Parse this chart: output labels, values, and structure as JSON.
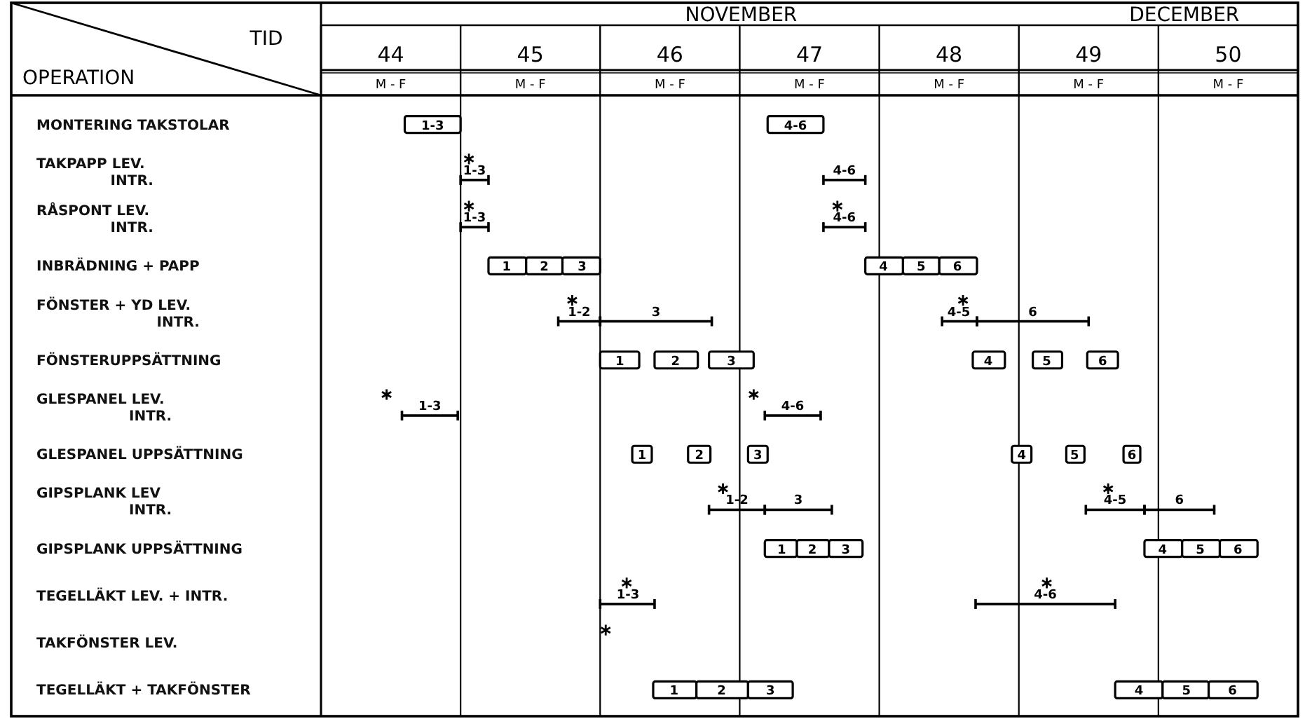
{
  "chart_data": {
    "type": "bar",
    "orientation": "horizontal",
    "xlabel": "TID",
    "ylabel": "OPERATION",
    "categories": [
      "MONTERING TAKSTOLAR",
      "TAKPAPP LEV.\nINTR.",
      "RÅSPONT LEV.\nINTR.",
      "INBRÄDNING + PAPP",
      "FÖNSTER + YD LEV.\nINTR.",
      "FÖNSTERUPPSÄTTNING",
      "GLESPANEL LEV.\nINTR.",
      "GLESPANEL UPPSÄTTNING",
      "GIPSPLANK LEV\nINTR.",
      "GIPSPLANK UPPSÄTTNING",
      "TEGELLÄKT LEV. + INTR.",
      "TAKFÖNSTER LEV.",
      "TEGELLÄKT + TAKFÖNSTER"
    ],
    "xlim": [
      44,
      51
    ],
    "xticks": [
      {
        "value": 44.5,
        "label": "44"
      },
      {
        "value": 45.5,
        "label": "45"
      },
      {
        "value": 46.5,
        "label": "46"
      },
      {
        "value": 47.5,
        "label": "47"
      },
      {
        "value": 48.5,
        "label": "48"
      },
      {
        "value": 49.5,
        "label": "49"
      },
      {
        "value": 50.5,
        "label": "50"
      }
    ],
    "grid": "x",
    "annotations": [
      "NOVEMBER",
      "DECEMBER",
      "M - F",
      "M - F",
      "M - F",
      "M - F",
      "M - F",
      "M - F",
      "M - F",
      {
        "text": "1-3",
        "x": 44.8,
        "y": "MONTERING TAKSTOLAR"
      },
      {
        "text": "4-6",
        "x": 47.4,
        "y": "MONTERING TAKSTOLAR"
      },
      {
        "text": "1",
        "x": 45.33,
        "y": "INBRÄDNING + PAPP"
      },
      {
        "text": "2",
        "x": 45.6,
        "y": "INBRÄDNING + PAPP"
      },
      {
        "text": "3",
        "x": 45.87,
        "y": "INBRÄDNING + PAPP"
      },
      {
        "text": "4",
        "x": 48.03,
        "y": "INBRÄDNING + PAPP"
      },
      {
        "text": "5",
        "x": 48.3,
        "y": "INBRÄDNING + PAPP"
      },
      {
        "text": "6",
        "x": 48.56,
        "y": "INBRÄDNING + PAPP"
      },
      {
        "text": "1",
        "x": 46.14,
        "y": "FÖNSTERUPPSÄTTNING"
      },
      {
        "text": "2",
        "x": 46.54,
        "y": "FÖNSTERUPPSÄTTNING"
      },
      {
        "text": "3",
        "x": 46.94,
        "y": "FÖNSTERUPPSÄTTNING"
      },
      {
        "text": "4",
        "x": 48.78,
        "y": "FÖNSTERUPPSÄTTNING"
      },
      {
        "text": "5",
        "x": 49.2,
        "y": "FÖNSTERUPPSÄTTNING"
      },
      {
        "text": "6",
        "x": 49.6,
        "y": "FÖNSTERUPPSÄTTNING"
      },
      {
        "text": "1",
        "x": 46.3,
        "y": "GLESPANEL UPPSÄTTNING"
      },
      {
        "text": "2",
        "x": 46.71,
        "y": "GLESPANEL UPPSÄTTNING"
      },
      {
        "text": "3",
        "x": 47.13,
        "y": "GLESPANEL UPPSÄTTNING"
      },
      {
        "text": "4",
        "x": 49.02,
        "y": "GLESPANEL UPPSÄTTNING"
      },
      {
        "text": "5",
        "x": 49.4,
        "y": "GLESPANEL UPPSÄTTNING"
      },
      {
        "text": "6",
        "x": 49.81,
        "y": "GLESPANEL UPPSÄTTNING"
      },
      {
        "text": "1",
        "x": 47.3,
        "y": "GIPSPLANK UPPSÄTTNING"
      },
      {
        "text": "2",
        "x": 47.52,
        "y": "GIPSPLANK UPPSÄTTNING"
      },
      {
        "text": "3",
        "x": 47.76,
        "y": "GIPSPLANK UPPSÄTTNING"
      },
      {
        "text": "4",
        "x": 50.03,
        "y": "GIPSPLANK UPPSÄTTNING"
      },
      {
        "text": "5",
        "x": 50.3,
        "y": "GIPSPLANK UPPSÄTTNING"
      },
      {
        "text": "6",
        "x": 50.57,
        "y": "GIPSPLANK UPPSÄTTNING"
      },
      {
        "text": "1",
        "x": 46.53,
        "y": "TEGELLÄKT + TAKFÖNSTER"
      },
      {
        "text": "2",
        "x": 46.87,
        "y": "TEGELLÄKT + TAKFÖNSTER"
      },
      {
        "text": "3",
        "x": 47.22,
        "y": "TEGELLÄKT + TAKFÖNSTER"
      },
      {
        "text": "4",
        "x": 49.86,
        "y": "TEGELLÄKT + TAKFÖNSTER"
      },
      {
        "text": "5",
        "x": 50.2,
        "y": "TEGELLÄKT + TAKFÖNSTER"
      },
      {
        "text": "6",
        "x": 50.53,
        "y": "TEGELLÄKT + TAKFÖNSTER"
      },
      {
        "text": "1-3",
        "x": 45.1,
        "y": "TAKPAPP LEV.\nINTR."
      },
      {
        "text": "4-6",
        "x": 47.75,
        "y": "TAKPAPP LEV.\nINTR."
      },
      {
        "text": "1-3",
        "x": 45.1,
        "y": "RÅSPONT LEV.\nINTR."
      },
      {
        "text": "4-6",
        "x": 47.75,
        "y": "RÅSPONT LEV.\nINTR."
      },
      {
        "text": "1-2",
        "x": 45.85,
        "y": "FÖNSTER + YD LEV.\nINTR."
      },
      {
        "text": "3",
        "x": 46.4,
        "y": "FÖNSTER + YD LEV.\nINTR."
      },
      {
        "text": "4-5",
        "x": 48.57,
        "y": "FÖNSTER + YD LEV.\nINTR."
      },
      {
        "text": "6",
        "x": 49.1,
        "y": "FÖNSTER + YD LEV.\nINTR."
      },
      {
        "text": "1-3",
        "x": 44.78,
        "y": "GLESPANEL LEV.\nINTR."
      },
      {
        "text": "4-6",
        "x": 47.38,
        "y": "GLESPANEL LEV.\nINTR."
      },
      {
        "text": "1-2",
        "x": 46.98,
        "y": "GIPSPLANK LEV\nINTR."
      },
      {
        "text": "3",
        "x": 47.42,
        "y": "GIPSPLANK LEV\nINTR."
      },
      {
        "text": "4-5",
        "x": 49.69,
        "y": "GIPSPLANK LEV\nINTR."
      },
      {
        "text": "6",
        "x": 50.15,
        "y": "GIPSPLANK LEV\nINTR."
      },
      {
        "text": "1-3",
        "x": 46.2,
        "y": "TEGELLÄKT LEV. + INTR."
      },
      {
        "text": "4-6",
        "x": 49.19,
        "y": "TEGELLÄKT LEV. + INTR."
      }
    ],
    "series": [
      {
        "color": "#000000",
        "base": [
          44.6,
          null,
          null,
          45.2,
          null,
          46.0,
          null,
          46.23,
          null,
          47.18,
          null,
          null,
          46.38
        ],
        "values": [
          0.4,
          null,
          null,
          0.27,
          null,
          0.28,
          null,
          0.14,
          null,
          0.23,
          null,
          null,
          0.31
        ]
      },
      {
        "color": "#000000",
        "base": [
          47.2,
          null,
          null,
          45.47,
          null,
          46.39,
          null,
          46.63,
          null,
          47.41,
          null,
          null,
          46.69
        ],
        "values": [
          0.4,
          null,
          null,
          0.26,
          null,
          0.31,
          null,
          0.16,
          null,
          0.23,
          null,
          null,
          0.37
        ]
      },
      {
        "color": "#000000",
        "base": [
          null,
          null,
          null,
          45.73,
          null,
          46.78,
          null,
          47.06,
          null,
          47.64,
          null,
          null,
          47.06
        ],
        "values": [
          null,
          null,
          null,
          0.27,
          null,
          0.32,
          null,
          0.14,
          null,
          0.24,
          null,
          null,
          0.32
        ]
      },
      {
        "color": "#000000",
        "base": [
          null,
          null,
          null,
          47.9,
          null,
          48.67,
          null,
          48.95,
          null,
          49.9,
          null,
          null,
          49.69
        ],
        "values": [
          null,
          null,
          null,
          0.27,
          null,
          0.23,
          null,
          0.14,
          null,
          0.27,
          null,
          null,
          0.34
        ]
      },
      {
        "color": "#000000",
        "base": [
          null,
          null,
          null,
          48.17,
          null,
          49.1,
          null,
          49.34,
          null,
          50.17,
          null,
          null,
          50.03
        ],
        "values": [
          null,
          null,
          null,
          0.26,
          null,
          0.21,
          null,
          0.13,
          null,
          0.27,
          null,
          null,
          0.33
        ]
      },
      {
        "color": "#000000",
        "base": [
          null,
          null,
          null,
          48.43,
          null,
          49.49,
          null,
          49.75,
          null,
          50.44,
          null,
          null,
          50.36
        ],
        "values": [
          null,
          null,
          null,
          0.27,
          null,
          0.22,
          null,
          0.12,
          null,
          0.27,
          null,
          null,
          0.35
        ]
      },
      {
        "line_style": "solid",
        "color": "#000000",
        "base": [
          null,
          45.0,
          45.0,
          null,
          45.7,
          null,
          44.58,
          null,
          46.78,
          null,
          46.0,
          null,
          null
        ],
        "values": [
          null,
          0.2,
          0.2,
          null,
          0.3,
          null,
          0.4,
          null,
          0.4,
          null,
          0.39,
          null,
          null
        ]
      },
      {
        "line_style": "solid",
        "color": "#000000",
        "base": [
          null,
          47.6,
          47.6,
          null,
          46.0,
          null,
          47.18,
          null,
          47.18,
          null,
          48.69,
          null,
          null
        ],
        "values": [
          null,
          0.3,
          0.3,
          null,
          0.8,
          null,
          0.4,
          null,
          0.48,
          null,
          1.0,
          null,
          null
        ]
      },
      {
        "line_style": "solid",
        "color": "#000000",
        "base": [
          null,
          null,
          null,
          null,
          48.45,
          null,
          null,
          null,
          49.48,
          null,
          null,
          null,
          null
        ],
        "values": [
          null,
          null,
          null,
          null,
          0.25,
          null,
          null,
          null,
          0.42,
          null,
          null,
          null,
          null
        ]
      },
      {
        "line_style": "solid",
        "color": "#000000",
        "base": [
          null,
          null,
          null,
          null,
          48.7,
          null,
          null,
          null,
          49.9,
          null,
          null,
          null,
          null
        ],
        "values": [
          null,
          null,
          null,
          null,
          0.8,
          null,
          null,
          null,
          0.5,
          null,
          null,
          null,
          null
        ]
      },
      {
        "type": "scatter",
        "marker": "cross",
        "color": "#000000",
        "x": [
          "TAKPAPP LEV.\nINTR.",
          "RÅSPONT LEV.\nINTR.",
          "RÅSPONT LEV.\nINTR.",
          "FÖNSTER + YD LEV.\nINTR.",
          "FÖNSTER + YD LEV.\nINTR.",
          "GLESPANEL LEV.\nINTR.",
          "GLESPANEL LEV.\nINTR.",
          "GIPSPLANK LEV\nINTR.",
          "GIPSPLANK LEV\nINTR.",
          "TEGELLÄKT LEV. + INTR.",
          "TEGELLÄKT LEV. + INTR.",
          "TAKFÖNSTER LEV."
        ],
        "values": [
          45.06,
          45.06,
          47.7,
          45.8,
          48.6,
          44.47,
          47.1,
          46.88,
          49.64,
          46.19,
          49.2,
          46.04
        ]
      }
    ]
  }
}
